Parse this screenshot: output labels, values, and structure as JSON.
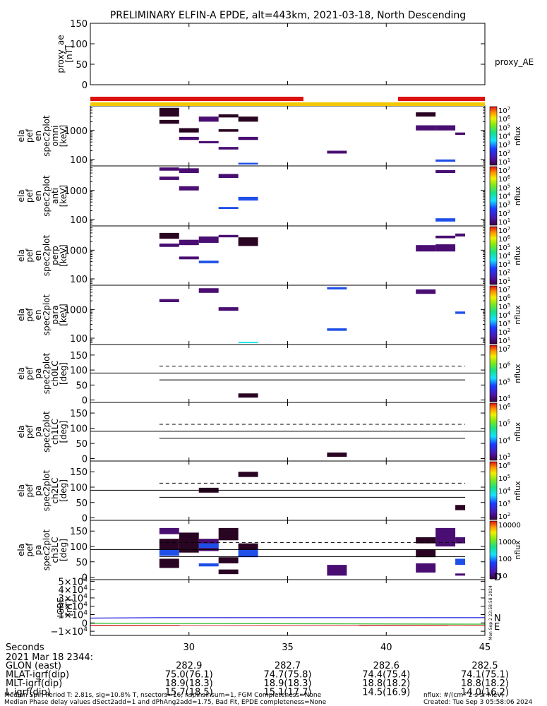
{
  "title": "PRELIMINARY ELFIN-A EPDE, alt=443km, 2021-03-18, North Descending",
  "colors": {
    "science_bar": "#dd1010",
    "fast_bar": "#f4c800",
    "purple": "#4a0e72",
    "dark": "#2a0523",
    "blue": "#1e4fe8",
    "cyan": "#22e8e8",
    "igrf_n": "#1f1fdd",
    "igrf_e": "#22bb22",
    "igrf_d": "#cc0000"
  },
  "chart_data": [
    {
      "type": "line",
      "id": "proxy_ae",
      "ylabel": "proxy_ae\n[nT]",
      "yticks": [
        "150",
        "100",
        "50",
        "0"
      ],
      "ylim": [
        0,
        150
      ],
      "legend": "proxy_AE",
      "series": []
    },
    {
      "type": "heatmap",
      "id": "omni",
      "ylabel": "ela\npef\nen\nspec2plot\nomni\n[keV]",
      "yticks": [
        "1000",
        "100"
      ],
      "ylim": [
        60,
        7000
      ],
      "log": true,
      "cbar_label": "nflux",
      "cbar_ticks": [
        "10^7",
        "10^6",
        "10^5",
        "10^4",
        "10^3",
        "10^2",
        "10^1"
      ],
      "cells": [
        {
          "x": [
            28.5,
            29.5
          ],
          "y": [
            3000,
            6000
          ],
          "c": "dark"
        },
        {
          "x": [
            28.5,
            29.5
          ],
          "y": [
            1700,
            2300
          ],
          "c": "dark"
        },
        {
          "x": [
            29.5,
            30.5
          ],
          "y": [
            850,
            1200
          ],
          "c": "dark"
        },
        {
          "x": [
            29.5,
            30.5
          ],
          "y": [
            470,
            600
          ],
          "c": "purple"
        },
        {
          "x": [
            30.5,
            31.5
          ],
          "y": [
            360,
            430
          ],
          "c": "purple"
        },
        {
          "x": [
            30.5,
            31.5
          ],
          "y": [
            2000,
            3000
          ],
          "c": "purple"
        },
        {
          "x": [
            31.5,
            32.5
          ],
          "y": [
            900,
            1100
          ],
          "c": "dark"
        },
        {
          "x": [
            31.5,
            32.5
          ],
          "y": [
            220,
            270
          ],
          "c": "purple"
        },
        {
          "x": [
            31.5,
            32.5
          ],
          "y": [
            2800,
            3600
          ],
          "c": "dark"
        },
        {
          "x": [
            32.5,
            33.5
          ],
          "y": [
            67,
            77
          ],
          "c": "blue"
        },
        {
          "x": [
            32.5,
            33.5
          ],
          "y": [
            470,
            600
          ],
          "c": "purple"
        },
        {
          "x": [
            32.5,
            33.5
          ],
          "y": [
            2000,
            3000
          ],
          "c": "dark"
        },
        {
          "x": [
            37,
            38
          ],
          "y": [
            160,
            200
          ],
          "c": "purple"
        },
        {
          "x": [
            41.5,
            42.5
          ],
          "y": [
            1000,
            1500
          ],
          "c": "purple"
        },
        {
          "x": [
            41.5,
            42.5
          ],
          "y": [
            3000,
            4200
          ],
          "c": "dark"
        },
        {
          "x": [
            42.5,
            43.5
          ],
          "y": [
            84,
            100
          ],
          "c": "blue"
        },
        {
          "x": [
            42.5,
            43.5
          ],
          "y": [
            1000,
            1500
          ],
          "c": "purple"
        },
        {
          "x": [
            43.5,
            44
          ],
          "y": [
            700,
            850
          ],
          "c": "purple"
        }
      ]
    },
    {
      "type": "heatmap",
      "id": "anti",
      "ylabel": "ela\npef\nen\nspec2plot\nanti\n[keV]",
      "yticks": [
        "1000",
        "100"
      ],
      "ylim": [
        60,
        7000
      ],
      "log": true,
      "cbar_label": "nflux",
      "cbar_ticks": [
        "10^7",
        "10^6",
        "10^5",
        "10^4",
        "10^3",
        "10^2",
        "10^1"
      ],
      "cells": [
        {
          "x": [
            28.5,
            29.5
          ],
          "y": [
            2300,
            3000
          ],
          "c": "purple"
        },
        {
          "x": [
            28.5,
            29.5
          ],
          "y": [
            4800,
            6200
          ],
          "c": "purple"
        },
        {
          "x": [
            29.5,
            30.5
          ],
          "y": [
            4000,
            5800
          ],
          "c": "purple"
        },
        {
          "x": [
            29.5,
            30.5
          ],
          "y": [
            1000,
            1400
          ],
          "c": "purple"
        },
        {
          "x": [
            31.5,
            32.5
          ],
          "y": [
            2700,
            3700
          ],
          "c": "purple"
        },
        {
          "x": [
            31.5,
            32.5
          ],
          "y": [
            230,
            270
          ],
          "c": "blue"
        },
        {
          "x": [
            32.5,
            33.5
          ],
          "y": [
            450,
            600
          ],
          "c": "blue"
        },
        {
          "x": [
            42.5,
            43.5
          ],
          "y": [
            85,
            110
          ],
          "c": "blue"
        },
        {
          "x": [
            42.5,
            43.5
          ],
          "y": [
            4000,
            5000
          ],
          "c": "purple"
        }
      ]
    },
    {
      "type": "heatmap",
      "id": "perp",
      "ylabel": "ela\npef\nen\nspec2plot\nperp\n[keV]",
      "yticks": [
        "1000",
        "100"
      ],
      "ylim": [
        60,
        7000
      ],
      "log": true,
      "cbar_label": "nflux",
      "cbar_ticks": [
        "10^7",
        "10^6",
        "10^5",
        "10^4",
        "10^3",
        "10^2",
        "10^1"
      ],
      "cells": [
        {
          "x": [
            28.5,
            29.5
          ],
          "y": [
            2500,
            4000
          ],
          "c": "dark"
        },
        {
          "x": [
            28.5,
            29.5
          ],
          "y": [
            1300,
            1700
          ],
          "c": "purple"
        },
        {
          "x": [
            29.5,
            30.5
          ],
          "y": [
            1500,
            2300
          ],
          "c": "purple"
        },
        {
          "x": [
            29.5,
            30.5
          ],
          "y": [
            480,
            600
          ],
          "c": "purple"
        },
        {
          "x": [
            30.5,
            31.5
          ],
          "y": [
            350,
            430
          ],
          "c": "blue"
        },
        {
          "x": [
            30.5,
            31.5
          ],
          "y": [
            1800,
            3000
          ],
          "c": "purple"
        },
        {
          "x": [
            31.5,
            32.5
          ],
          "y": [
            2800,
            3400
          ],
          "c": "purple"
        },
        {
          "x": [
            32.5,
            33.5
          ],
          "y": [
            1400,
            2800
          ],
          "c": "dark"
        },
        {
          "x": [
            41.5,
            42.5
          ],
          "y": [
            900,
            1500
          ],
          "c": "purple"
        },
        {
          "x": [
            42.5,
            43.5
          ],
          "y": [
            900,
            1600
          ],
          "c": "purple"
        },
        {
          "x": [
            42.5,
            43.5
          ],
          "y": [
            2600,
            3200
          ],
          "c": "purple"
        },
        {
          "x": [
            43.5,
            44
          ],
          "y": [
            3000,
            3800
          ],
          "c": "purple"
        }
      ]
    },
    {
      "type": "heatmap",
      "id": "para",
      "ylabel": "ela\npef\nen\nspec2plot\npara\n[keV]",
      "yticks": [
        "1000",
        "100"
      ],
      "ylim": [
        60,
        7000
      ],
      "log": true,
      "cbar_label": "nflux",
      "cbar_ticks": [
        "10^7",
        "10^6",
        "10^5",
        "10^4",
        "10^3",
        "10^2",
        "10^1"
      ],
      "cells": [
        {
          "x": [
            28.5,
            29.5
          ],
          "y": [
            1800,
            2300
          ],
          "c": "purple"
        },
        {
          "x": [
            30.5,
            31.5
          ],
          "y": [
            3800,
            5500
          ],
          "c": "purple"
        },
        {
          "x": [
            31.5,
            32.5
          ],
          "y": [
            900,
            1200
          ],
          "c": "purple"
        },
        {
          "x": [
            32.5,
            33.5
          ],
          "y": [
            67,
            75
          ],
          "c": "cyan"
        },
        {
          "x": [
            37,
            38
          ],
          "y": [
            5000,
            6000
          ],
          "c": "blue"
        },
        {
          "x": [
            37,
            38
          ],
          "y": [
            180,
            220
          ],
          "c": "blue"
        },
        {
          "x": [
            41.5,
            42.5
          ],
          "y": [
            3500,
            5000
          ],
          "c": "purple"
        },
        {
          "x": [
            43.5,
            44
          ],
          "y": [
            700,
            850
          ],
          "c": "blue"
        }
      ]
    },
    {
      "type": "heatmap",
      "id": "ch0LC",
      "ylabel": "ela\npef\npa\nspec2plot\nch0LC\n[deg]",
      "yticks": [
        "150",
        "100",
        "50",
        "0"
      ],
      "ylim": [
        -8,
        185
      ],
      "log": false,
      "cbar_label": "nflux",
      "cbar_ticks": [
        "10^7",
        "10^6",
        "10^5",
        "10^4"
      ],
      "lines": {
        "solid_top": 90,
        "dashed": 113,
        "solid_low": 67
      },
      "cells": [
        {
          "x": [
            32.5,
            33.5
          ],
          "y": [
            8,
            22
          ],
          "c": "dark"
        }
      ]
    },
    {
      "type": "heatmap",
      "id": "ch1LC",
      "ylabel": "ela\npef\npa\nspec2plot\nch1LC\n[deg]",
      "yticks": [
        "150",
        "100",
        "50",
        "0"
      ],
      "ylim": [
        -8,
        185
      ],
      "log": false,
      "cbar_label": "nflux",
      "cbar_ticks": [
        "10^6",
        "10^5",
        "10^4",
        "10^3"
      ],
      "lines": {
        "solid_top": 90,
        "dashed": 113,
        "solid_low": 67
      },
      "cells": [
        {
          "x": [
            37,
            38
          ],
          "y": [
            6,
            20
          ],
          "c": "dark"
        }
      ]
    },
    {
      "type": "heatmap",
      "id": "ch2LC",
      "ylabel": "ela\npef\npa\nspec2plot\nch2LC\n[deg]",
      "yticks": [
        "150",
        "100",
        "50",
        "0"
      ],
      "ylim": [
        -8,
        185
      ],
      "log": false,
      "cbar_label": "nflux",
      "cbar_ticks": [
        "10^6",
        "10^5",
        "10^4",
        "10^3",
        "10^2"
      ],
      "lines": {
        "solid_top": 90,
        "dashed": 113,
        "solid_low": 67
      },
      "cells": [
        {
          "x": [
            30.5,
            31.5
          ],
          "y": [
            82,
            98
          ],
          "c": "dark"
        },
        {
          "x": [
            32.5,
            33.5
          ],
          "y": [
            133,
            150
          ],
          "c": "dark"
        },
        {
          "x": [
            43.5,
            44
          ],
          "y": [
            25,
            42
          ],
          "c": "dark"
        }
      ]
    },
    {
      "type": "heatmap",
      "id": "ch3LC",
      "ylabel": "ela\npef\npa\nspec2plot\nch3LC\n[deg]",
      "yticks": [
        "150",
        "100",
        "50",
        "0"
      ],
      "ylim": [
        -8,
        185
      ],
      "log": false,
      "cbar_label": "nflux",
      "cbar_ticks": [
        "10000",
        "1000",
        "100",
        "10"
      ],
      "lines": {
        "solid_top": 90,
        "dashed": 113,
        "solid_low": 67
      },
      "cells": [
        {
          "x": [
            28.5,
            29.5
          ],
          "y": [
            30,
            60
          ],
          "c": "dark"
        },
        {
          "x": [
            28.5,
            29.5
          ],
          "y": [
            70,
            90
          ],
          "c": "blue"
        },
        {
          "x": [
            28.5,
            29.5
          ],
          "y": [
            140,
            160
          ],
          "c": "purple"
        },
        {
          "x": [
            28.5,
            29.5
          ],
          "y": [
            90,
            125
          ],
          "c": "dark"
        },
        {
          "x": [
            29.5,
            30.5
          ],
          "y": [
            80,
            145
          ],
          "c": "dark"
        },
        {
          "x": [
            30.5,
            31.5
          ],
          "y": [
            85,
            125
          ],
          "c": "purple"
        },
        {
          "x": [
            30.5,
            31.5
          ],
          "y": [
            95,
            110
          ],
          "c": "blue"
        },
        {
          "x": [
            30.5,
            31.5
          ],
          "y": [
            35,
            45
          ],
          "c": "blue"
        },
        {
          "x": [
            31.5,
            32.5
          ],
          "y": [
            120,
            160
          ],
          "c": "dark"
        },
        {
          "x": [
            31.5,
            32.5
          ],
          "y": [
            45,
            65
          ],
          "c": "dark"
        },
        {
          "x": [
            31.5,
            32.5
          ],
          "y": [
            10,
            25
          ],
          "c": "dark"
        },
        {
          "x": [
            32.5,
            33.5
          ],
          "y": [
            65,
            90
          ],
          "c": "blue"
        },
        {
          "x": [
            32.5,
            33.5
          ],
          "y": [
            90,
            110
          ],
          "c": "dark"
        },
        {
          "x": [
            37,
            38
          ],
          "y": [
            5,
            40
          ],
          "c": "purple"
        },
        {
          "x": [
            41.5,
            42.5
          ],
          "y": [
            15,
            45
          ],
          "c": "purple"
        },
        {
          "x": [
            41.5,
            42.5
          ],
          "y": [
            65,
            90
          ],
          "c": "dark"
        },
        {
          "x": [
            41.5,
            42.5
          ],
          "y": [
            110,
            130
          ],
          "c": "dark"
        },
        {
          "x": [
            42.5,
            43.5
          ],
          "y": [
            100,
            160
          ],
          "c": "purple"
        },
        {
          "x": [
            43.5,
            44
          ],
          "y": [
            40,
            60
          ],
          "c": "blue"
        },
        {
          "x": [
            43.5,
            44
          ],
          "y": [
            110,
            130
          ],
          "c": "purple"
        },
        {
          "x": [
            43.5,
            44
          ],
          "y": [
            5,
            12
          ],
          "c": "purple"
        }
      ]
    },
    {
      "type": "line",
      "id": "igrf",
      "ylabel": "IGRF\n[nT]",
      "yticks": [
        "5×10^4",
        "4×10^4",
        "3×10^4",
        "2×10^4",
        "1×10^4",
        "0",
        "−1×10^4"
      ],
      "ylim": [
        -15000,
        52000
      ],
      "legend": [
        "N",
        "E",
        "D"
      ],
      "series": [
        {
          "name": "N",
          "x": [
            25,
            28.5,
            45
          ],
          "y": [
            5800,
            6300,
            6300
          ],
          "color": "igrf_n"
        },
        {
          "name": "E",
          "x": [
            25,
            45
          ],
          "y": [
            -500,
            -1500
          ],
          "color": "igrf_e"
        },
        {
          "name": "D",
          "x": [
            25,
            45
          ],
          "y": [
            -2800,
            -3000
          ],
          "color": "igrf_d"
        }
      ]
    }
  ],
  "x_axis": {
    "range": [
      25,
      45
    ],
    "ticks": [
      "30",
      "35",
      "40",
      "45"
    ],
    "label": "Seconds",
    "epoch": "2021 Mar 18 2344:"
  },
  "ephem": [
    {
      "label": "GLON (east)",
      "values": [
        "282.9",
        "282.7",
        "282.6",
        "282.5"
      ]
    },
    {
      "label": "MLAT-igrf(dip)",
      "values": [
        "75.0(76.1)",
        "74.7(75.8)",
        "74.4(75.4)",
        "74.1(75.1)"
      ]
    },
    {
      "label": "MLT-igrf(dip)",
      "values": [
        "18.9(18.3)",
        "18.9(18.3)",
        "18.8(18.2)",
        "18.8(18.2)"
      ]
    },
    {
      "label": "L-igrf(dip)",
      "values": [
        "15.7(18.5)",
        "15.1(17.7)",
        "14.5(16.9)",
        "14.0(16.2)"
      ]
    }
  ],
  "bars": {
    "red": [
      [
        25,
        35.8
      ],
      [
        40.6,
        45
      ]
    ],
    "yellow": [
      [
        25,
        45
      ]
    ]
  },
  "footer": {
    "line1": "Median Spin Period T: 2.81s, sig=10.8% T, nsectors=16, nspinsinsum=1, FGM Completeness=None",
    "line2": "Median Phase delay values dSect2add=1 and dPhAng2add=1.75, Bad Fit, EPDE completeness=None",
    "units": "nflux: #/(cm^2 s sr MeV)",
    "created": "Created: Tue Sep  3 05:58:06 2024",
    "stamp": "Mon Sep  2 22:58:58 2024"
  }
}
